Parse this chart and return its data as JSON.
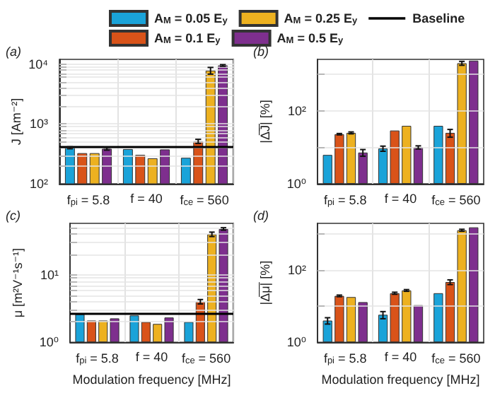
{
  "chart_data": [
    {
      "type": "bar",
      "annotations": [
        "(a)"
      ],
      "ylabel": "J [Am⁻²]",
      "categories": [
        "f$_{pi}$ = 5.8",
        "f = 40",
        "f$_{ce}$ = 560"
      ],
      "log": "y",
      "ylim": [
        100,
        12000
      ],
      "yticks": [
        {
          "value": 100,
          "label": "10²"
        },
        {
          "value": 200,
          "label": null
        },
        {
          "value": 300,
          "label": null
        },
        {
          "value": 400,
          "label": null
        },
        {
          "value": 500,
          "label": null
        },
        {
          "value": 600,
          "label": null
        },
        {
          "value": 700,
          "label": null
        },
        {
          "value": 800,
          "label": null
        },
        {
          "value": 900,
          "label": null
        },
        {
          "value": 1000,
          "label": "10³"
        },
        {
          "value": 2000,
          "label": null
        },
        {
          "value": 3000,
          "label": null
        },
        {
          "value": 4000,
          "label": null
        },
        {
          "value": 5000,
          "label": null
        },
        {
          "value": 6000,
          "label": null
        },
        {
          "value": 7000,
          "label": null
        },
        {
          "value": 8000,
          "label": null
        },
        {
          "value": 9000,
          "label": null
        },
        {
          "value": 10000,
          "label": "10⁴"
        }
      ],
      "grid": true,
      "legend": "top",
      "series": [
        {
          "name": "A$_{M}$ = 0.05 E$_{y}$",
          "color": "#1aa3d9",
          "values": [
            400,
            380,
            272
          ],
          "errors": [
            15,
            null,
            null
          ]
        },
        {
          "name": "A$_{M}$ = 0.1 E$_{y}$",
          "color": "#d95319",
          "values": [
            325,
            305,
            513
          ],
          "errors": [
            null,
            null,
            40
          ]
        },
        {
          "name": "A$_{M}$ = 0.25 E$_{y}$",
          "color": "#edb120",
          "values": [
            325,
            267,
            7800
          ],
          "errors": [
            null,
            null,
            1000
          ]
        },
        {
          "name": "A$_{M}$ = 0.5 E$_{y}$",
          "color": "#7e2f8e",
          "values": [
            385,
            375,
            9500
          ],
          "errors": [
            20,
            null,
            300
          ]
        }
      ],
      "ref_lines": [
        {
          "axis": "y",
          "value": 420,
          "label": "Baseline",
          "color": "#000000"
        }
      ]
    },
    {
      "type": "bar",
      "annotations": [
        "(b)"
      ],
      "ylabel": "|Δ̅J̅| [%]",
      "categories": [
        "f$_{pi}$ = 5.8",
        "f = 40",
        "f$_{ce}$ = 560"
      ],
      "log": "y",
      "ylim": [
        1,
        2600
      ],
      "yticks": [
        {
          "value": 1,
          "label": "10⁰"
        },
        {
          "value": 10,
          "label": null
        },
        {
          "value": 100,
          "label": "10²"
        },
        {
          "value": 1000,
          "label": null
        }
      ],
      "grid": true,
      "series": [
        {
          "color": "#1aa3d9",
          "values": [
            6.2,
            9.3,
            39
          ],
          "errors": [
            null,
            1.5,
            null
          ]
        },
        {
          "color": "#d95319",
          "values": [
            23,
            29,
            25
          ],
          "errors": [
            1,
            null,
            6
          ]
        },
        {
          "color": "#edb120",
          "values": [
            25,
            39,
            2040
          ],
          "errors": [
            1.5,
            null,
            250
          ]
        },
        {
          "color": "#7e2f8e",
          "values": [
            7.2,
            10,
            2400
          ],
          "errors": [
            1.5,
            1,
            null
          ]
        }
      ]
    },
    {
      "type": "bar",
      "annotations": [
        "(c)"
      ],
      "ylabel": "μ [m²V⁻¹s⁻¹]",
      "xlabel": "Modulation frequency [MHz]",
      "categories": [
        "f$_{pi}$ = 5.8",
        "f = 40",
        "f$_{ce}$ = 560"
      ],
      "log": "y",
      "ylim": [
        1,
        58
      ],
      "yticks": [
        {
          "value": 1,
          "label": "10⁰"
        },
        {
          "value": 2,
          "label": null
        },
        {
          "value": 3,
          "label": null
        },
        {
          "value": 4,
          "label": null
        },
        {
          "value": 5,
          "label": null
        },
        {
          "value": 6,
          "label": null
        },
        {
          "value": 7,
          "label": null
        },
        {
          "value": 8,
          "label": null
        },
        {
          "value": 9,
          "label": null
        },
        {
          "value": 10,
          "label": "10¹"
        },
        {
          "value": 20,
          "label": null
        },
        {
          "value": 30,
          "label": null
        },
        {
          "value": 40,
          "label": null
        },
        {
          "value": 50,
          "label": null
        }
      ],
      "grid": true,
      "series": [
        {
          "color": "#1aa3d9",
          "values": [
            2.6,
            2.5,
            2.0
          ]
        },
        {
          "color": "#d95319",
          "values": [
            2.1,
            2.0,
            4.0
          ],
          "errors": [
            null,
            null,
            0.3
          ]
        },
        {
          "color": "#edb120",
          "values": [
            2.1,
            1.87,
            40
          ],
          "errors": [
            null,
            null,
            3
          ]
        },
        {
          "color": "#7e2f8e",
          "values": [
            2.26,
            2.33,
            48
          ],
          "errors": [
            null,
            null,
            2
          ]
        }
      ],
      "ref_lines": [
        {
          "axis": "y",
          "value": 2.7,
          "color": "#000000"
        }
      ]
    },
    {
      "type": "bar",
      "annotations": [
        "(d)"
      ],
      "ylabel": "|Δ̅μ̅| [%]",
      "xlabel": "Modulation frequency [MHz]",
      "categories": [
        "f$_{pi}$ = 5.8",
        "f = 40",
        "f$_{ce}$ = 560"
      ],
      "log": "y",
      "ylim": [
        1,
        2000
      ],
      "yticks": [
        {
          "value": 1,
          "label": "10⁰"
        },
        {
          "value": 10,
          "label": null
        },
        {
          "value": 100,
          "label": "10²"
        },
        {
          "value": 1000,
          "label": null
        }
      ],
      "grid": true,
      "series": [
        {
          "color": "#1aa3d9",
          "values": [
            4.0,
            5.8,
            23
          ],
          "errors": [
            0.8,
            1.3,
            null
          ]
        },
        {
          "color": "#d95319",
          "values": [
            19.4,
            23,
            47
          ],
          "errors": [
            1,
            1.5,
            7
          ]
        },
        {
          "color": "#edb120",
          "values": [
            18,
            27.5,
            1290
          ],
          "errors": [
            null,
            1.5,
            80
          ]
        },
        {
          "color": "#7e2f8e",
          "values": [
            13,
            10.7,
            1550
          ]
        }
      ]
    }
  ]
}
